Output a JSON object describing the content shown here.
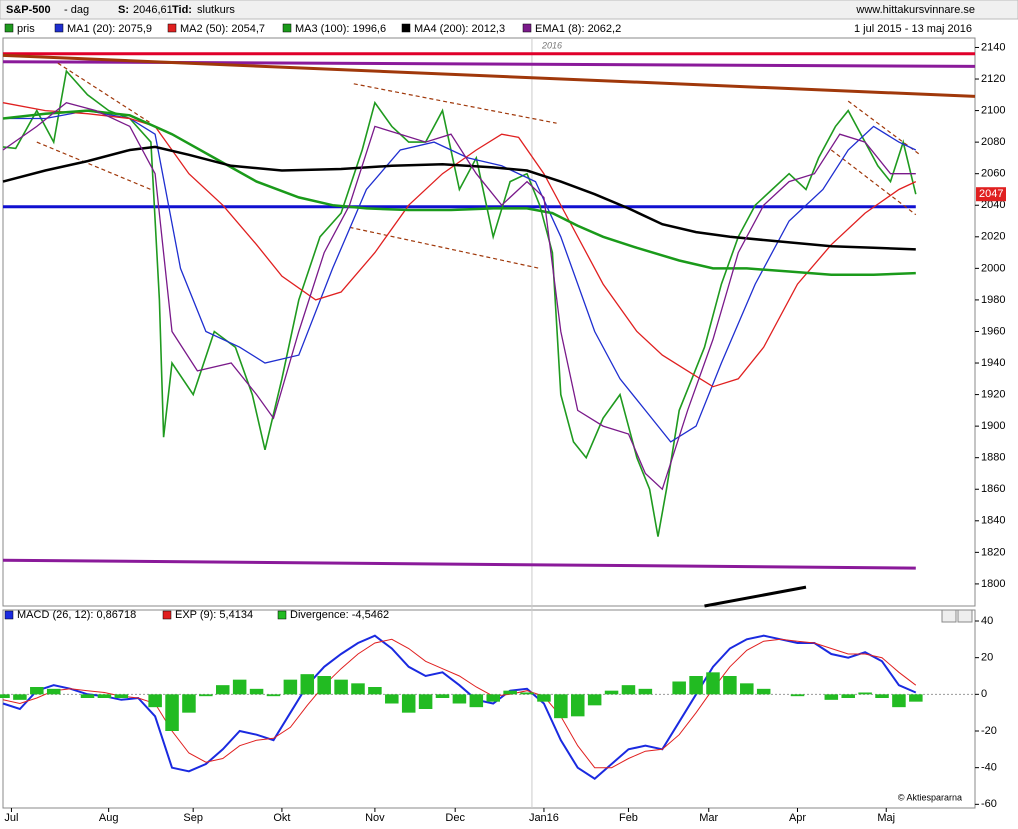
{
  "header": {
    "symbol": "S&P-500",
    "period": "- dag",
    "s_label": "S:",
    "s_value": "2046,61",
    "tid_label": "Tid:",
    "tid_value": "slutkurs",
    "site": "www.hittakursvinnare.se"
  },
  "chart_data": [
    {
      "type": "line",
      "date_range": "1 jul 2015 - 13 maj 2016",
      "year_label": "2016",
      "last_value": 2047,
      "xlim": [
        0,
        230
      ],
      "xticks": [
        {
          "value": 2,
          "label": "Jul"
        },
        {
          "value": 25,
          "label": "Aug"
        },
        {
          "value": 45,
          "label": "Sep"
        },
        {
          "value": 66,
          "label": "Okt"
        },
        {
          "value": 88,
          "label": "Nov"
        },
        {
          "value": 107,
          "label": "Dec"
        },
        {
          "value": 128,
          "label": "Jan16"
        },
        {
          "value": 148,
          "label": "Feb"
        },
        {
          "value": 167,
          "label": "Mar"
        },
        {
          "value": 188,
          "label": "Apr"
        },
        {
          "value": 209,
          "label": "Maj"
        }
      ],
      "ylim": [
        1786,
        2146
      ],
      "yticks": [
        1800,
        1820,
        1840,
        1860,
        1880,
        1900,
        1920,
        1940,
        1960,
        1980,
        2000,
        2020,
        2040,
        2060,
        2080,
        2100,
        2120,
        2140
      ],
      "series": [
        {
          "name": "pris",
          "color": "#1f9a1f",
          "x": [
            0,
            3,
            8,
            12,
            15,
            20,
            25,
            30,
            35,
            37,
            38,
            40,
            45,
            50,
            55,
            59,
            62,
            66,
            70,
            75,
            80,
            85,
            88,
            92,
            96,
            100,
            104,
            108,
            112,
            116,
            120,
            124,
            127,
            130,
            132,
            135,
            138,
            142,
            146,
            150,
            153,
            155,
            157,
            160,
            163,
            166,
            170,
            174,
            178,
            182,
            186,
            190,
            193,
            197,
            200,
            204,
            207,
            210,
            213,
            216
          ],
          "values": [
            2077,
            2076,
            2100,
            2080,
            2125,
            2110,
            2100,
            2095,
            2080,
            1980,
            1893,
            1940,
            1920,
            1960,
            1950,
            1920,
            1885,
            1930,
            1980,
            2020,
            2035,
            2075,
            2105,
            2090,
            2080,
            2080,
            2100,
            2050,
            2070,
            2020,
            2055,
            2060,
            2040,
            2010,
            1920,
            1890,
            1880,
            1905,
            1920,
            1880,
            1860,
            1830,
            1860,
            1910,
            1930,
            1950,
            1990,
            2020,
            2040,
            2050,
            2060,
            2050,
            2070,
            2090,
            2100,
            2080,
            2065,
            2055,
            2080,
            2047
          ]
        },
        {
          "name": "MA1 (20): 2075,9",
          "color": "#1f2fd0",
          "x": [
            0,
            10,
            20,
            30,
            36,
            42,
            48,
            56,
            62,
            70,
            78,
            86,
            94,
            102,
            110,
            118,
            126,
            132,
            140,
            146,
            152,
            158,
            164,
            170,
            178,
            186,
            194,
            200,
            206,
            212,
            216
          ],
          "values": [
            2095,
            2095,
            2100,
            2095,
            2085,
            2000,
            1960,
            1950,
            1940,
            1945,
            2000,
            2050,
            2075,
            2080,
            2070,
            2065,
            2055,
            2020,
            1960,
            1930,
            1910,
            1890,
            1900,
            1940,
            1990,
            2030,
            2050,
            2075,
            2090,
            2080,
            2075
          ]
        },
        {
          "name": "MA2 (50): 2054,7",
          "color": "#e02020",
          "x": [
            0,
            10,
            20,
            30,
            36,
            44,
            52,
            60,
            66,
            74,
            80,
            88,
            96,
            104,
            112,
            118,
            122,
            128,
            134,
            142,
            150,
            156,
            162,
            168,
            174,
            180,
            188,
            196,
            204,
            212,
            216
          ],
          "values": [
            2105,
            2100,
            2098,
            2095,
            2090,
            2060,
            2040,
            2015,
            1995,
            1980,
            1985,
            2010,
            2040,
            2060,
            2075,
            2085,
            2083,
            2060,
            2030,
            1990,
            1960,
            1945,
            1935,
            1925,
            1930,
            1950,
            1990,
            2015,
            2035,
            2050,
            2055
          ]
        },
        {
          "name": "MA3 (100): 1996,6",
          "color": "#1a9a1a",
          "x": [
            0,
            10,
            20,
            30,
            40,
            50,
            60,
            70,
            78,
            86,
            96,
            106,
            116,
            124,
            130,
            136,
            142,
            150,
            160,
            168,
            176,
            186,
            196,
            206,
            216
          ],
          "values": [
            2095,
            2098,
            2100,
            2097,
            2085,
            2070,
            2055,
            2045,
            2040,
            2038,
            2037,
            2037,
            2038,
            2038,
            2035,
            2027,
            2020,
            2013,
            2005,
            2000,
            2000,
            1998,
            1996,
            1996,
            1997
          ]
        },
        {
          "name": "MA4 (200): 2012,3",
          "color": "#000000",
          "x": [
            0,
            10,
            20,
            30,
            36,
            44,
            54,
            66,
            80,
            92,
            104,
            116,
            124,
            132,
            140,
            148,
            156,
            164,
            172,
            180,
            188,
            196,
            206,
            216
          ],
          "values": [
            2055,
            2062,
            2068,
            2075,
            2077,
            2072,
            2065,
            2062,
            2063,
            2065,
            2066,
            2064,
            2062,
            2055,
            2047,
            2038,
            2028,
            2023,
            2020,
            2018,
            2016,
            2014,
            2013,
            2012
          ]
        },
        {
          "name": "EMA1 (8): 2062,2",
          "color": "#7a1a8a",
          "x": [
            0,
            8,
            15,
            22,
            30,
            36,
            40,
            46,
            54,
            60,
            64,
            70,
            76,
            82,
            88,
            94,
            100,
            106,
            112,
            118,
            124,
            128,
            132,
            136,
            142,
            148,
            152,
            156,
            162,
            168,
            174,
            180,
            186,
            192,
            198,
            204,
            210,
            216
          ],
          "values": [
            2075,
            2090,
            2105,
            2100,
            2090,
            2060,
            1960,
            1935,
            1940,
            1920,
            1905,
            1960,
            2010,
            2040,
            2090,
            2085,
            2080,
            2085,
            2060,
            2040,
            2055,
            2045,
            1960,
            1910,
            1900,
            1895,
            1870,
            1860,
            1910,
            1955,
            2010,
            2040,
            2055,
            2060,
            2085,
            2080,
            2060,
            2060
          ]
        }
      ],
      "trendlines": [
        {
          "color": "#e0002a",
          "dashed": false,
          "x": [
            0,
            230
          ],
          "values": [
            2136,
            2136
          ]
        },
        {
          "color": "#8a1a9a",
          "dashed": false,
          "x": [
            0,
            230
          ],
          "values": [
            2131,
            2128
          ]
        },
        {
          "color": "#a0380a",
          "dashed": false,
          "x": [
            0,
            230
          ],
          "values": [
            2135,
            2109
          ]
        },
        {
          "color": "#1010d0",
          "dashed": false,
          "x": [
            0,
            216
          ],
          "values": [
            2039,
            2039
          ]
        },
        {
          "color": "#8a1a9a",
          "dashed": false,
          "x": [
            0,
            216
          ],
          "values": [
            1815,
            1810
          ]
        },
        {
          "color": "#000000",
          "dashed": false,
          "x": [
            166,
            190
          ],
          "values": [
            1786,
            1798
          ]
        },
        {
          "color": "#a0380a",
          "dashed": true,
          "x": [
            13,
            35
          ],
          "values": [
            2130,
            2092
          ]
        },
        {
          "color": "#a0380a",
          "dashed": true,
          "x": [
            8,
            35
          ],
          "values": [
            2080,
            2050
          ]
        },
        {
          "color": "#a0380a",
          "dashed": true,
          "x": [
            83,
            131
          ],
          "values": [
            2117,
            2092
          ]
        },
        {
          "color": "#a0380a",
          "dashed": true,
          "x": [
            82,
            127
          ],
          "values": [
            2026,
            2000
          ]
        },
        {
          "color": "#a0380a",
          "dashed": true,
          "x": [
            200,
            217
          ],
          "values": [
            2106,
            2072
          ]
        },
        {
          "color": "#a0380a",
          "dashed": true,
          "x": [
            196,
            216
          ],
          "values": [
            2075,
            2034
          ]
        }
      ]
    },
    {
      "type": "macd",
      "xlim": [
        0,
        230
      ],
      "ylim": [
        -62,
        46
      ],
      "yticks": [
        -60,
        -40,
        -20,
        0,
        20,
        40
      ],
      "x": [
        0,
        4,
        8,
        12,
        16,
        20,
        24,
        28,
        32,
        36,
        40,
        44,
        48,
        52,
        56,
        60,
        64,
        68,
        72,
        76,
        80,
        84,
        88,
        92,
        96,
        100,
        104,
        108,
        112,
        116,
        120,
        124,
        128,
        132,
        136,
        140,
        144,
        148,
        152,
        156,
        160,
        164,
        168,
        172,
        176,
        180,
        184,
        188,
        192,
        196,
        200,
        204,
        208,
        212,
        216
      ],
      "series": [
        {
          "name": "MACD (26, 12): 0,86718",
          "color": "#1a2ae0",
          "values": [
            -5,
            -8,
            2,
            5,
            3,
            0,
            -1,
            -3,
            -2,
            -12,
            -40,
            -42,
            -38,
            -30,
            -20,
            -22,
            -25,
            -10,
            5,
            15,
            22,
            28,
            32,
            25,
            15,
            10,
            12,
            5,
            -3,
            -5,
            2,
            3,
            -5,
            -25,
            -40,
            -46,
            -38,
            -30,
            -28,
            -30,
            -15,
            0,
            15,
            25,
            30,
            32,
            30,
            28,
            28,
            22,
            20,
            23,
            18,
            5,
            1
          ]
        },
        {
          "name": "EXP (9): 5,4134",
          "color": "#e02020",
          "values": [
            -3,
            -5,
            -2,
            2,
            3,
            2,
            1,
            -1,
            -2,
            -5,
            -20,
            -32,
            -37,
            -35,
            -28,
            -25,
            -24,
            -18,
            -6,
            5,
            14,
            22,
            28,
            30,
            25,
            18,
            14,
            10,
            4,
            -1,
            0,
            2,
            -1,
            -12,
            -28,
            -40,
            -40,
            -35,
            -31,
            -30,
            -22,
            -10,
            3,
            15,
            24,
            29,
            30,
            29,
            28,
            25,
            22,
            22,
            20,
            12,
            5
          ]
        },
        {
          "name": "Divergence: -4,5462",
          "color": "#22bb22",
          "values": [
            -2,
            -3,
            4,
            3,
            0,
            -2,
            -2,
            -2,
            0,
            -7,
            -20,
            -10,
            -1,
            5,
            8,
            3,
            -1,
            8,
            11,
            10,
            8,
            6,
            4,
            -5,
            -10,
            -8,
            -2,
            -5,
            -7,
            -4,
            2,
            1,
            -4,
            -13,
            -12,
            -6,
            2,
            5,
            3,
            0,
            7,
            10,
            12,
            10,
            6,
            3,
            0,
            -1,
            0,
            -3,
            -2,
            1,
            -2,
            -7,
            -4
          ]
        }
      ]
    }
  ],
  "footer": "© Aktiespararna"
}
